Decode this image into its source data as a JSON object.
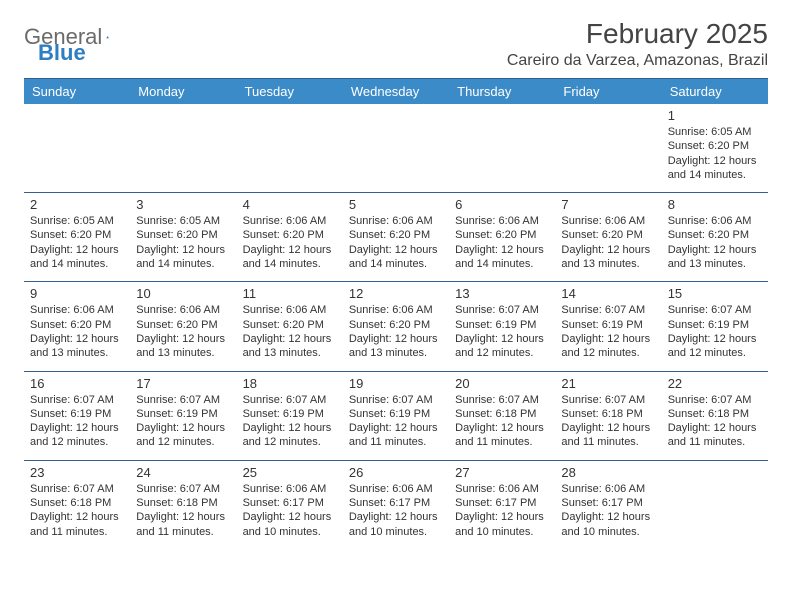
{
  "logo": {
    "word1": "General",
    "word2": "Blue"
  },
  "header": {
    "title": "February 2025",
    "subtitle": "Careiro da Varzea, Amazonas, Brazil"
  },
  "colors": {
    "header_bg": "#3b8bc9",
    "header_text": "#ffffff",
    "rule": "#365f91",
    "logo_gray": "#6b6b6b",
    "logo_blue": "#2f7ec2",
    "text": "#333333",
    "page_bg": "#ffffff"
  },
  "typography": {
    "title_fontsize": 28,
    "subtitle_fontsize": 16,
    "dayheader_fontsize": 13,
    "daynum_fontsize": 13,
    "info_fontsize": 11,
    "font_family": "Arial"
  },
  "calendar": {
    "columns": [
      "Sunday",
      "Monday",
      "Tuesday",
      "Wednesday",
      "Thursday",
      "Friday",
      "Saturday"
    ],
    "weeks": [
      [
        null,
        null,
        null,
        null,
        null,
        null,
        {
          "day": "1",
          "sunrise": "Sunrise: 6:05 AM",
          "sunset": "Sunset: 6:20 PM",
          "daylight": "Daylight: 12 hours and 14 minutes."
        }
      ],
      [
        {
          "day": "2",
          "sunrise": "Sunrise: 6:05 AM",
          "sunset": "Sunset: 6:20 PM",
          "daylight": "Daylight: 12 hours and 14 minutes."
        },
        {
          "day": "3",
          "sunrise": "Sunrise: 6:05 AM",
          "sunset": "Sunset: 6:20 PM",
          "daylight": "Daylight: 12 hours and 14 minutes."
        },
        {
          "day": "4",
          "sunrise": "Sunrise: 6:06 AM",
          "sunset": "Sunset: 6:20 PM",
          "daylight": "Daylight: 12 hours and 14 minutes."
        },
        {
          "day": "5",
          "sunrise": "Sunrise: 6:06 AM",
          "sunset": "Sunset: 6:20 PM",
          "daylight": "Daylight: 12 hours and 14 minutes."
        },
        {
          "day": "6",
          "sunrise": "Sunrise: 6:06 AM",
          "sunset": "Sunset: 6:20 PM",
          "daylight": "Daylight: 12 hours and 14 minutes."
        },
        {
          "day": "7",
          "sunrise": "Sunrise: 6:06 AM",
          "sunset": "Sunset: 6:20 PM",
          "daylight": "Daylight: 12 hours and 13 minutes."
        },
        {
          "day": "8",
          "sunrise": "Sunrise: 6:06 AM",
          "sunset": "Sunset: 6:20 PM",
          "daylight": "Daylight: 12 hours and 13 minutes."
        }
      ],
      [
        {
          "day": "9",
          "sunrise": "Sunrise: 6:06 AM",
          "sunset": "Sunset: 6:20 PM",
          "daylight": "Daylight: 12 hours and 13 minutes."
        },
        {
          "day": "10",
          "sunrise": "Sunrise: 6:06 AM",
          "sunset": "Sunset: 6:20 PM",
          "daylight": "Daylight: 12 hours and 13 minutes."
        },
        {
          "day": "11",
          "sunrise": "Sunrise: 6:06 AM",
          "sunset": "Sunset: 6:20 PM",
          "daylight": "Daylight: 12 hours and 13 minutes."
        },
        {
          "day": "12",
          "sunrise": "Sunrise: 6:06 AM",
          "sunset": "Sunset: 6:20 PM",
          "daylight": "Daylight: 12 hours and 13 minutes."
        },
        {
          "day": "13",
          "sunrise": "Sunrise: 6:07 AM",
          "sunset": "Sunset: 6:19 PM",
          "daylight": "Daylight: 12 hours and 12 minutes."
        },
        {
          "day": "14",
          "sunrise": "Sunrise: 6:07 AM",
          "sunset": "Sunset: 6:19 PM",
          "daylight": "Daylight: 12 hours and 12 minutes."
        },
        {
          "day": "15",
          "sunrise": "Sunrise: 6:07 AM",
          "sunset": "Sunset: 6:19 PM",
          "daylight": "Daylight: 12 hours and 12 minutes."
        }
      ],
      [
        {
          "day": "16",
          "sunrise": "Sunrise: 6:07 AM",
          "sunset": "Sunset: 6:19 PM",
          "daylight": "Daylight: 12 hours and 12 minutes."
        },
        {
          "day": "17",
          "sunrise": "Sunrise: 6:07 AM",
          "sunset": "Sunset: 6:19 PM",
          "daylight": "Daylight: 12 hours and 12 minutes."
        },
        {
          "day": "18",
          "sunrise": "Sunrise: 6:07 AM",
          "sunset": "Sunset: 6:19 PM",
          "daylight": "Daylight: 12 hours and 12 minutes."
        },
        {
          "day": "19",
          "sunrise": "Sunrise: 6:07 AM",
          "sunset": "Sunset: 6:19 PM",
          "daylight": "Daylight: 12 hours and 11 minutes."
        },
        {
          "day": "20",
          "sunrise": "Sunrise: 6:07 AM",
          "sunset": "Sunset: 6:18 PM",
          "daylight": "Daylight: 12 hours and 11 minutes."
        },
        {
          "day": "21",
          "sunrise": "Sunrise: 6:07 AM",
          "sunset": "Sunset: 6:18 PM",
          "daylight": "Daylight: 12 hours and 11 minutes."
        },
        {
          "day": "22",
          "sunrise": "Sunrise: 6:07 AM",
          "sunset": "Sunset: 6:18 PM",
          "daylight": "Daylight: 12 hours and 11 minutes."
        }
      ],
      [
        {
          "day": "23",
          "sunrise": "Sunrise: 6:07 AM",
          "sunset": "Sunset: 6:18 PM",
          "daylight": "Daylight: 12 hours and 11 minutes."
        },
        {
          "day": "24",
          "sunrise": "Sunrise: 6:07 AM",
          "sunset": "Sunset: 6:18 PM",
          "daylight": "Daylight: 12 hours and 11 minutes."
        },
        {
          "day": "25",
          "sunrise": "Sunrise: 6:06 AM",
          "sunset": "Sunset: 6:17 PM",
          "daylight": "Daylight: 12 hours and 10 minutes."
        },
        {
          "day": "26",
          "sunrise": "Sunrise: 6:06 AM",
          "sunset": "Sunset: 6:17 PM",
          "daylight": "Daylight: 12 hours and 10 minutes."
        },
        {
          "day": "27",
          "sunrise": "Sunrise: 6:06 AM",
          "sunset": "Sunset: 6:17 PM",
          "daylight": "Daylight: 12 hours and 10 minutes."
        },
        {
          "day": "28",
          "sunrise": "Sunrise: 6:06 AM",
          "sunset": "Sunset: 6:17 PM",
          "daylight": "Daylight: 12 hours and 10 minutes."
        },
        null
      ]
    ]
  }
}
